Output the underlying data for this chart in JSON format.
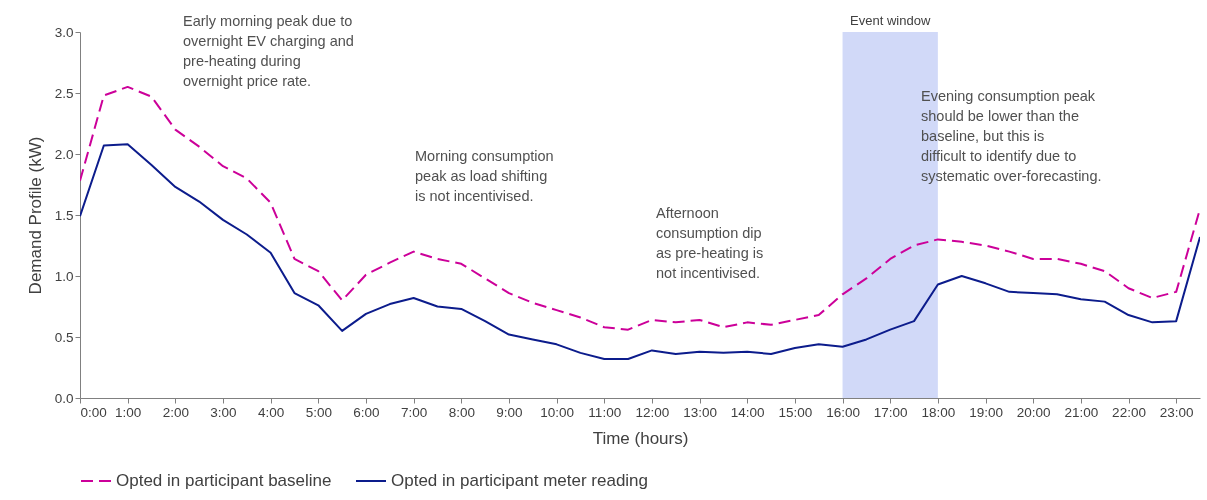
{
  "chart_data": {
    "type": "line",
    "xlabel": "Time (hours)",
    "ylabel": "Demand Profile (kW)",
    "x": [
      0,
      0.5,
      1,
      1.5,
      2,
      2.5,
      3,
      3.5,
      4,
      4.5,
      5,
      5.5,
      6,
      6.5,
      7,
      7.5,
      8,
      8.5,
      9,
      9.5,
      10,
      10.5,
      11,
      11.5,
      12,
      12.5,
      13,
      13.5,
      14,
      14.5,
      15,
      15.5,
      16,
      16.5,
      17,
      17.5,
      18,
      18.5,
      19,
      19.5,
      20,
      20.5,
      21,
      21.5,
      22,
      22.5,
      23,
      23.5
    ],
    "series": [
      {
        "name": "Opted in participant baseline",
        "color": "#cc0099",
        "line_style": "dashed",
        "values": [
          1.78,
          2.48,
          2.55,
          2.47,
          2.2,
          2.06,
          1.9,
          1.8,
          1.6,
          1.14,
          1.04,
          0.8,
          1.01,
          1.11,
          1.2,
          1.14,
          1.1,
          0.98,
          0.86,
          0.78,
          0.72,
          0.66,
          0.58,
          0.56,
          0.64,
          0.62,
          0.64,
          0.58,
          0.62,
          0.6,
          0.64,
          0.68,
          0.85,
          0.98,
          1.14,
          1.25,
          1.3,
          1.28,
          1.25,
          1.2,
          1.14,
          1.14,
          1.1,
          1.04,
          0.9,
          0.82,
          0.87,
          1.55
        ]
      },
      {
        "name": "Opted in participant meter reading",
        "color": "#0c1c8c",
        "line_style": "solid",
        "values": [
          1.49,
          2.07,
          2.08,
          1.91,
          1.73,
          1.61,
          1.46,
          1.34,
          1.19,
          0.86,
          0.76,
          0.55,
          0.69,
          0.77,
          0.82,
          0.75,
          0.73,
          0.63,
          0.52,
          0.48,
          0.44,
          0.37,
          0.32,
          0.32,
          0.39,
          0.36,
          0.38,
          0.37,
          0.38,
          0.36,
          0.41,
          0.44,
          0.42,
          0.48,
          0.56,
          0.63,
          0.93,
          1.0,
          0.94,
          0.87,
          0.86,
          0.85,
          0.81,
          0.79,
          0.68,
          0.62,
          0.63,
          1.32
        ]
      }
    ],
    "xlim": [
      0,
      23.5
    ],
    "xticks": [
      {
        "value": 0,
        "label": "0:00"
      },
      {
        "value": 1,
        "label": "1:00"
      },
      {
        "value": 2,
        "label": "2:00"
      },
      {
        "value": 3,
        "label": "3:00"
      },
      {
        "value": 4,
        "label": "4:00"
      },
      {
        "value": 5,
        "label": "5:00"
      },
      {
        "value": 6,
        "label": "6:00"
      },
      {
        "value": 7,
        "label": "7:00"
      },
      {
        "value": 8,
        "label": "8:00"
      },
      {
        "value": 9,
        "label": "9:00"
      },
      {
        "value": 10,
        "label": "10:00"
      },
      {
        "value": 11,
        "label": "11:00"
      },
      {
        "value": 12,
        "label": "12:00"
      },
      {
        "value": 13,
        "label": "13:00"
      },
      {
        "value": 14,
        "label": "14:00"
      },
      {
        "value": 15,
        "label": "15:00"
      },
      {
        "value": 16,
        "label": "16:00"
      },
      {
        "value": 17,
        "label": "17:00"
      },
      {
        "value": 18,
        "label": "18:00"
      },
      {
        "value": 19,
        "label": "19:00"
      },
      {
        "value": 20,
        "label": "20:00"
      },
      {
        "value": 21,
        "label": "21:00"
      },
      {
        "value": 22,
        "label": "22:00"
      },
      {
        "value": 23,
        "label": "23:00"
      }
    ],
    "ylim": [
      0,
      3
    ],
    "yticks": [
      {
        "value": 0,
        "label": "0.0"
      },
      {
        "value": 0.5,
        "label": "0.5"
      },
      {
        "value": 1,
        "label": "1.0"
      },
      {
        "value": 1.5,
        "label": "1.5"
      },
      {
        "value": 2,
        "label": "2.0"
      },
      {
        "value": 2.5,
        "label": "2.5"
      },
      {
        "value": 3,
        "label": "3.0"
      }
    ],
    "bands": [
      {
        "axis": "x",
        "from": 16,
        "to": 18,
        "label": "Event window",
        "color": "#ccd5f7"
      }
    ],
    "annotations": [
      "Early morning peak due to overnight EV charging and pre-heating during overnight price rate.",
      "Morning consumption peak as load shifting is not incentivised.",
      "Afternoon consumption dip as pre-heating is not incentivised.",
      "Evening consumption peak should be lower than the baseline, but this is difficult to identify due to systematic over-forecasting."
    ],
    "grid": false,
    "legend": "bottom"
  }
}
